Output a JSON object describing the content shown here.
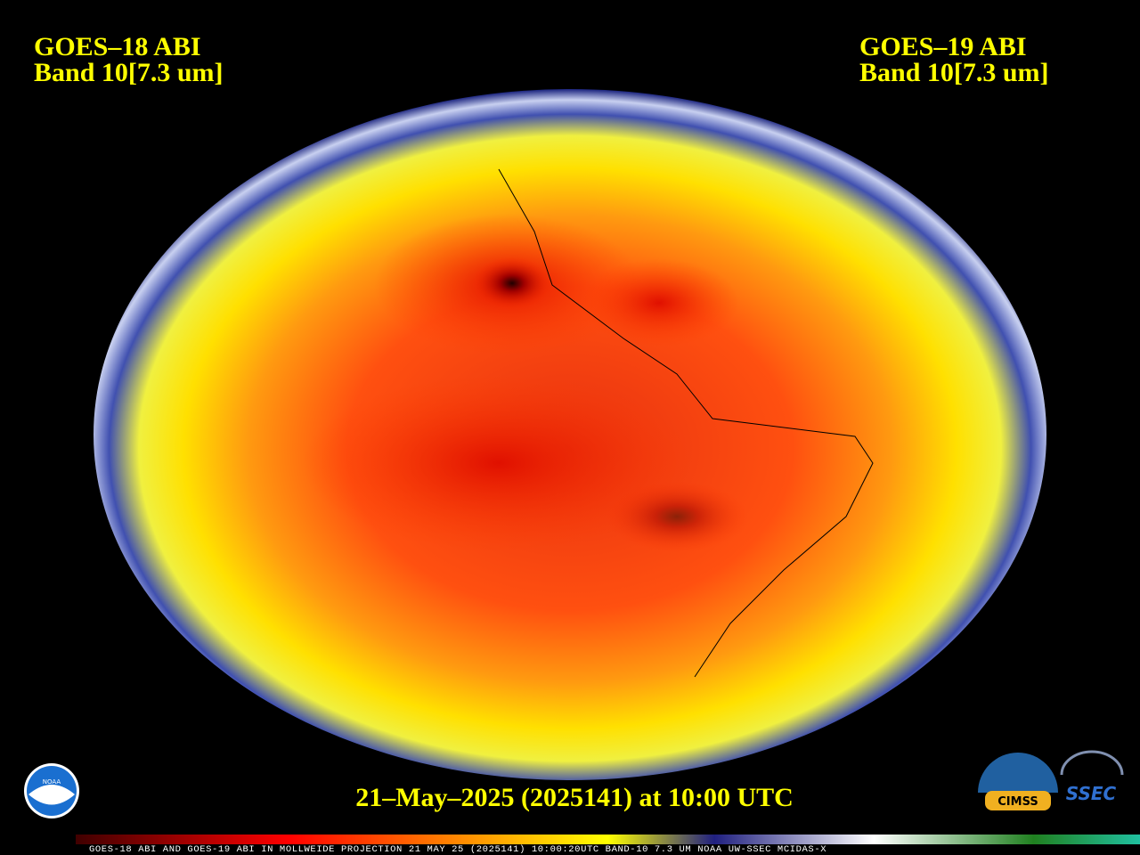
{
  "left_label": {
    "satellite": "GOES–18 ABI",
    "band": "Band 10[7.3 um]"
  },
  "right_label": {
    "satellite": "GOES–19 ABI",
    "band": "Band 10[7.3 um]"
  },
  "timestamp": "21–May–2025 (2025141) at 10:00 UTC",
  "colorbar_caption": "GOES-18 ABI AND GOES-19 ABI IN MOLLWEIDE PROJECTION 21 MAY 25 (2025141) 10:00:20UTC BAND-10 7.3 UM NOAA UW-SSEC MCIDAS-X",
  "logos": {
    "noaa": "NOAA",
    "cimss": "CIMSS",
    "ssec": "SSEC"
  }
}
